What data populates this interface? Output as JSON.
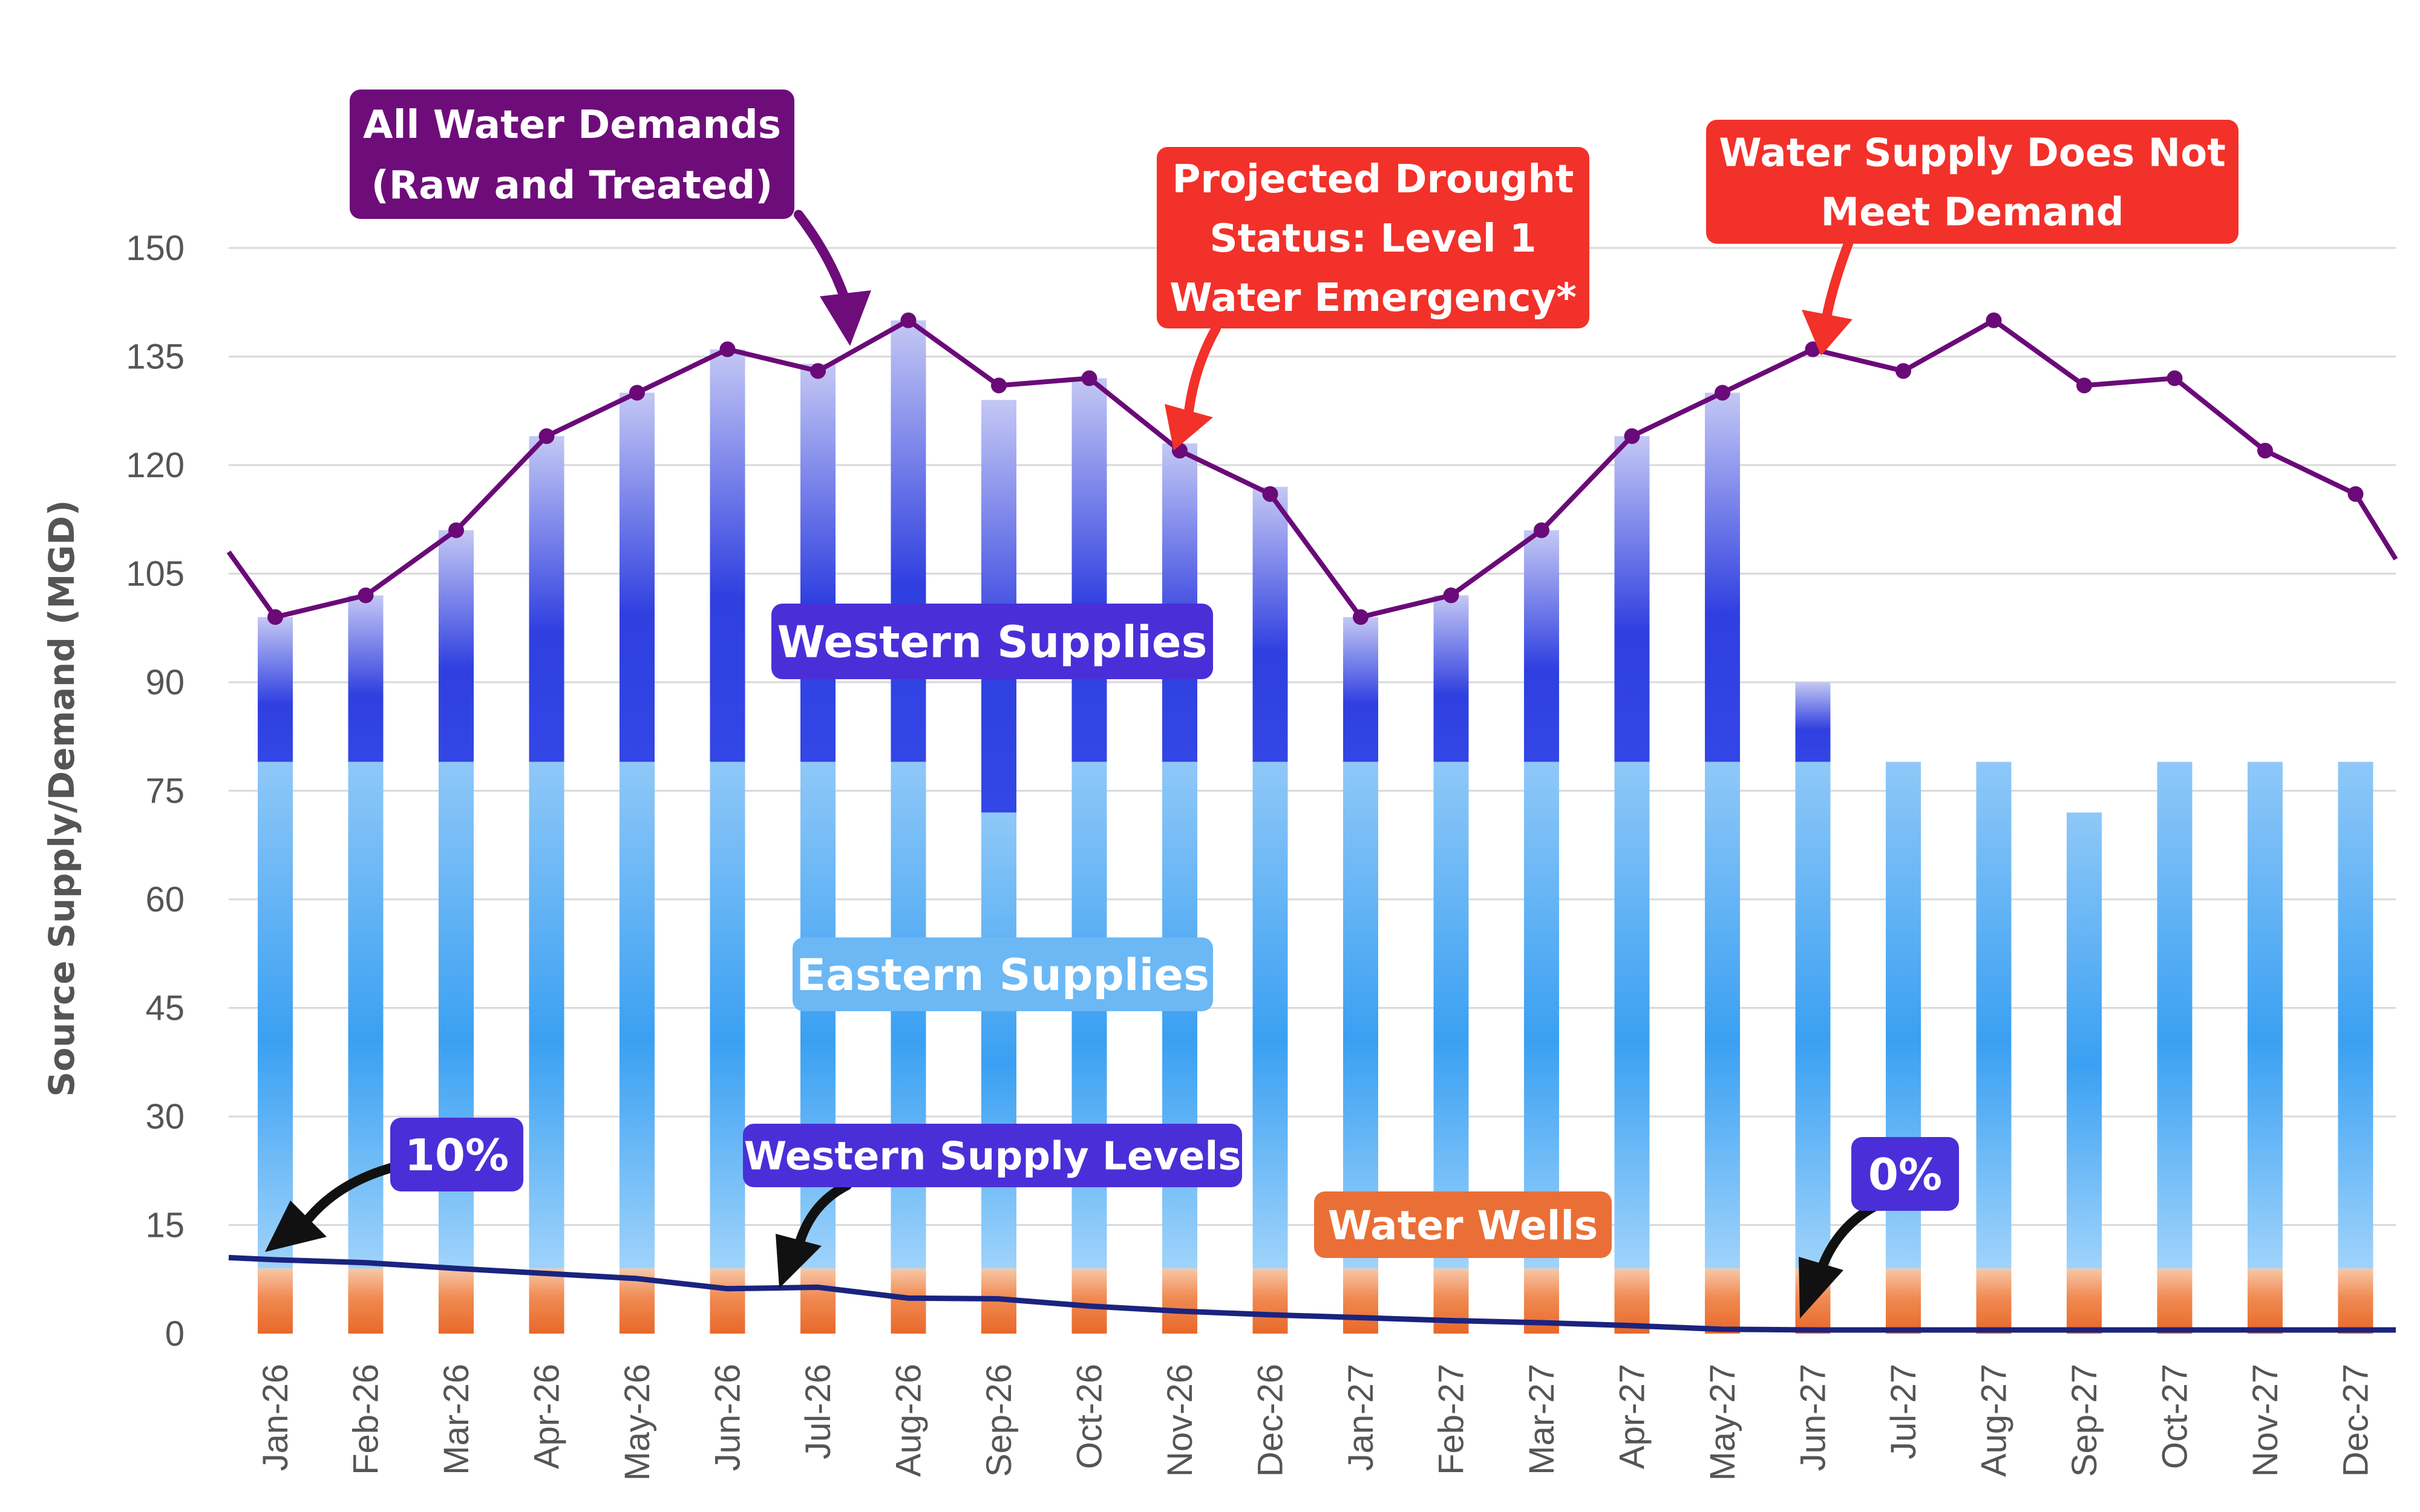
{
  "colors": {
    "demand_line": "#6a0a78",
    "supply_level_line": "#1a237e",
    "eastern_top": "#8fc8f8",
    "eastern_bottom": "#3aa0f2",
    "western_top": "#c4c8f4",
    "western_mid": "#2f3fe0",
    "wells_top": "#f6c8a8",
    "wells_bottom": "#e8682a",
    "callout_purple": "#6e0d7a",
    "callout_red": "#f2312a",
    "callout_indigo": "#4a2fd8",
    "callout_lightblue": "#6bb8f5",
    "callout_orange": "#ea6f36",
    "grid": "#d9d9d9",
    "axis_text": "#555555"
  },
  "chart_data": {
    "type": "bar",
    "stacked": true,
    "ylabel": "Source Supply/Demand (MGD)",
    "xlabel": "",
    "ylim": [
      0,
      150
    ],
    "yticks": [
      0,
      15,
      30,
      45,
      60,
      75,
      90,
      105,
      120,
      135,
      150
    ],
    "grid": true,
    "categories": [
      "Jan-26",
      "Feb-26",
      "Mar-26",
      "Apr-26",
      "May-26",
      "Jun-26",
      "Jul-26",
      "Aug-26",
      "Sep-26",
      "Oct-26",
      "Nov-26",
      "Dec-26",
      "Jan-27",
      "Feb-27",
      "Mar-27",
      "Apr-27",
      "May-27",
      "Jun-27",
      "Jul-27",
      "Aug-27",
      "Sep-27",
      "Oct-27",
      "Nov-27",
      "Dec-27"
    ],
    "series": [
      {
        "name": "Water Wells",
        "type": "bar",
        "values": [
          9,
          9,
          9,
          9,
          9,
          9,
          9,
          9,
          9,
          9,
          9,
          9,
          9,
          9,
          9,
          9,
          9,
          9,
          9,
          9,
          9,
          9,
          9,
          9
        ]
      },
      {
        "name": "Eastern Supplies",
        "type": "bar",
        "values": [
          70,
          70,
          70,
          70,
          70,
          70,
          70,
          70,
          63,
          70,
          70,
          70,
          70,
          70,
          70,
          70,
          70,
          70,
          70,
          70,
          63,
          70,
          70,
          70
        ]
      },
      {
        "name": "Western Supplies",
        "type": "bar",
        "values": [
          20,
          23,
          32,
          45,
          51,
          57,
          55,
          61,
          57,
          53,
          44,
          38,
          20,
          23,
          32,
          45,
          51,
          11,
          0,
          0,
          0,
          0,
          0,
          0
        ]
      },
      {
        "name": "All Water Demands (Raw and Treated)",
        "type": "line",
        "values": [
          99,
          102,
          111,
          124,
          130,
          136,
          133,
          140,
          131,
          132,
          122,
          116,
          99,
          102,
          111,
          124,
          130,
          136,
          133,
          140,
          131,
          132,
          122,
          116
        ],
        "left_edge": 108,
        "right_edge": 107
      },
      {
        "name": "Western Supply Levels",
        "type": "line",
        "values": [
          10.2,
          9.8,
          9,
          8.3,
          7.6,
          6.2,
          6.4,
          4.9,
          4.8,
          3.8,
          3.1,
          2.6,
          2.2,
          1.8,
          1.5,
          1.1,
          0.6,
          0.5,
          0.5,
          0.5,
          0.5,
          0.5,
          0.5,
          0.5
        ],
        "left_edge": 10.5,
        "right_edge": 0.5
      }
    ],
    "annotations": [
      {
        "id": "demands",
        "lines": [
          "All Water Demands",
          "(Raw and Treated)"
        ]
      },
      {
        "id": "drought",
        "lines": [
          "Projected Drought",
          "Status: Level 1",
          "Water Emergency*"
        ]
      },
      {
        "id": "not-meet",
        "lines": [
          "Water Supply Does Not",
          "Meet Demand"
        ]
      },
      {
        "id": "western",
        "lines": [
          "Western Supplies"
        ]
      },
      {
        "id": "eastern",
        "lines": [
          "Eastern Supplies"
        ]
      },
      {
        "id": "ten-pct",
        "lines": [
          "10%"
        ]
      },
      {
        "id": "wsl",
        "lines": [
          "Western Supply Levels"
        ]
      },
      {
        "id": "wells",
        "lines": [
          "Water Wells"
        ]
      },
      {
        "id": "zero-pct",
        "lines": [
          "0%"
        ]
      }
    ]
  }
}
